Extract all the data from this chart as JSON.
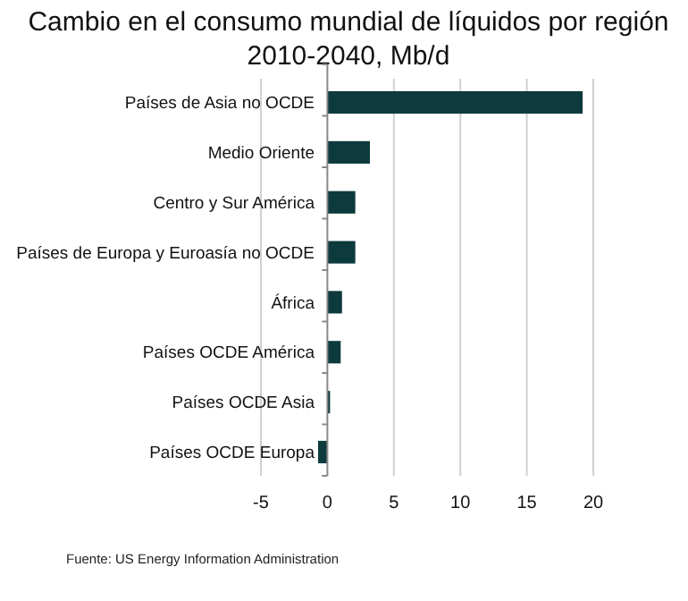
{
  "chart_data": {
    "type": "bar",
    "orientation": "horizontal",
    "title": "Cambio en el consumo mundial de líquidos por región 2010-2040, Mb/d",
    "categories": [
      "Países de Asia no OCDE",
      "Medio Oriente",
      "Centro y Sur América",
      "Países de Europa y Euroasía no OCDE",
      "África",
      "Países OCDE América",
      "Países OCDE  Asia",
      "Países OCDE Europa"
    ],
    "values": [
      19.2,
      3.2,
      2.1,
      2.1,
      1.1,
      1.0,
      0.2,
      -0.7
    ],
    "color": "#0d3a3c",
    "xlim": [
      -5,
      20
    ],
    "xticks": [
      -5,
      0,
      5,
      10,
      15,
      20
    ],
    "grid": "x",
    "annotations": [
      "Fuente: US Energy Information Administration"
    ]
  }
}
